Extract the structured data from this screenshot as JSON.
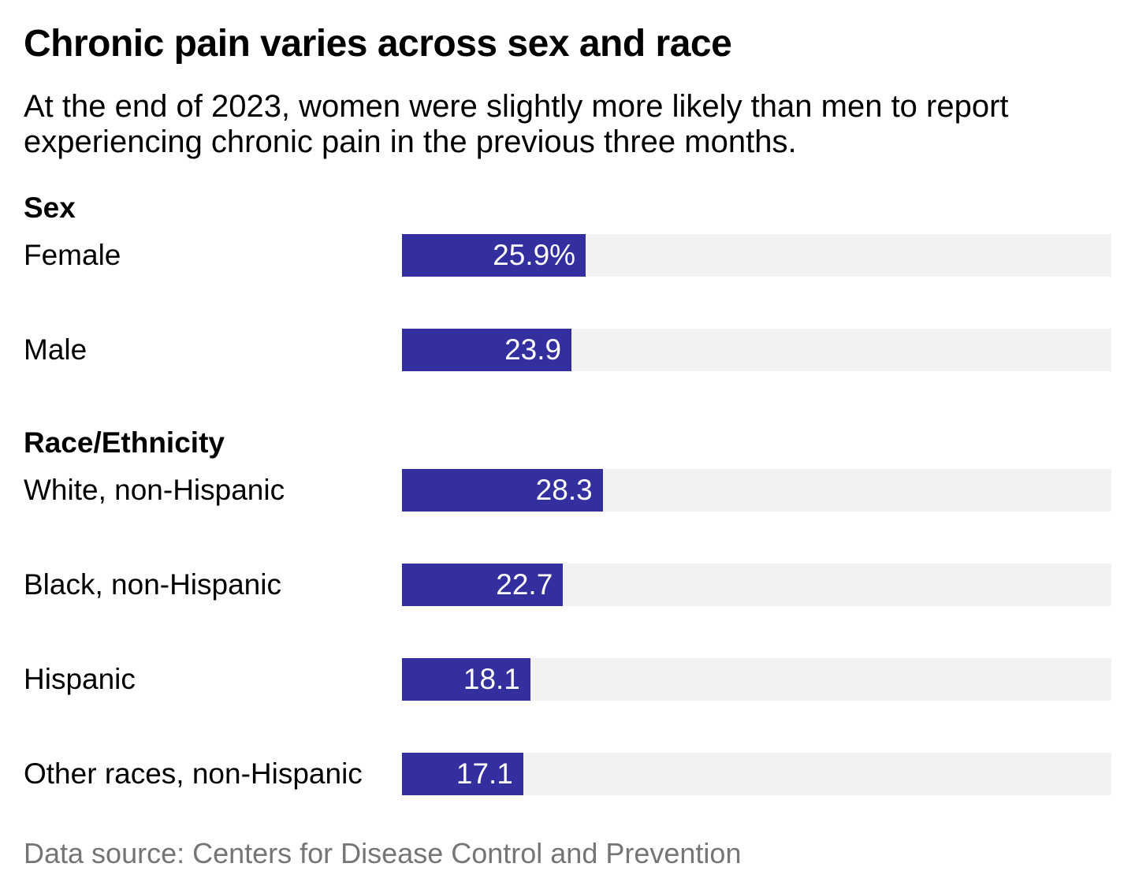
{
  "header": {
    "title": "Chronic pain varies across sex and race",
    "subtitle": "At the end of 2023, women were slightly more likely than men to report experiencing chronic pain in the previous three months."
  },
  "footer": {
    "source": "Data source: Centers for Disease Control and Prevention"
  },
  "chart_data": {
    "type": "bar",
    "orientation": "horizontal",
    "unit": "percent",
    "xlim": [
      0,
      100
    ],
    "grid": false,
    "legend": false,
    "bar_color": "#332f9e",
    "track_color": "#f2f2f2",
    "value_label_color": "#ffffff",
    "title": "Chronic pain varies across sex and race",
    "groups": [
      {
        "label": "Sex",
        "rows": [
          {
            "label": "Female",
            "value": 25.9,
            "value_label": "25.9%"
          },
          {
            "label": "Male",
            "value": 23.9,
            "value_label": "23.9"
          }
        ]
      },
      {
        "label": "Race/Ethnicity",
        "rows": [
          {
            "label": "White, non-Hispanic",
            "value": 28.3,
            "value_label": "28.3"
          },
          {
            "label": "Black, non-Hispanic",
            "value": 22.7,
            "value_label": "22.7"
          },
          {
            "label": "Hispanic",
            "value": 18.1,
            "value_label": "18.1"
          },
          {
            "label": "Other races, non-Hispanic",
            "value": 17.1,
            "value_label": "17.1"
          }
        ]
      }
    ]
  }
}
